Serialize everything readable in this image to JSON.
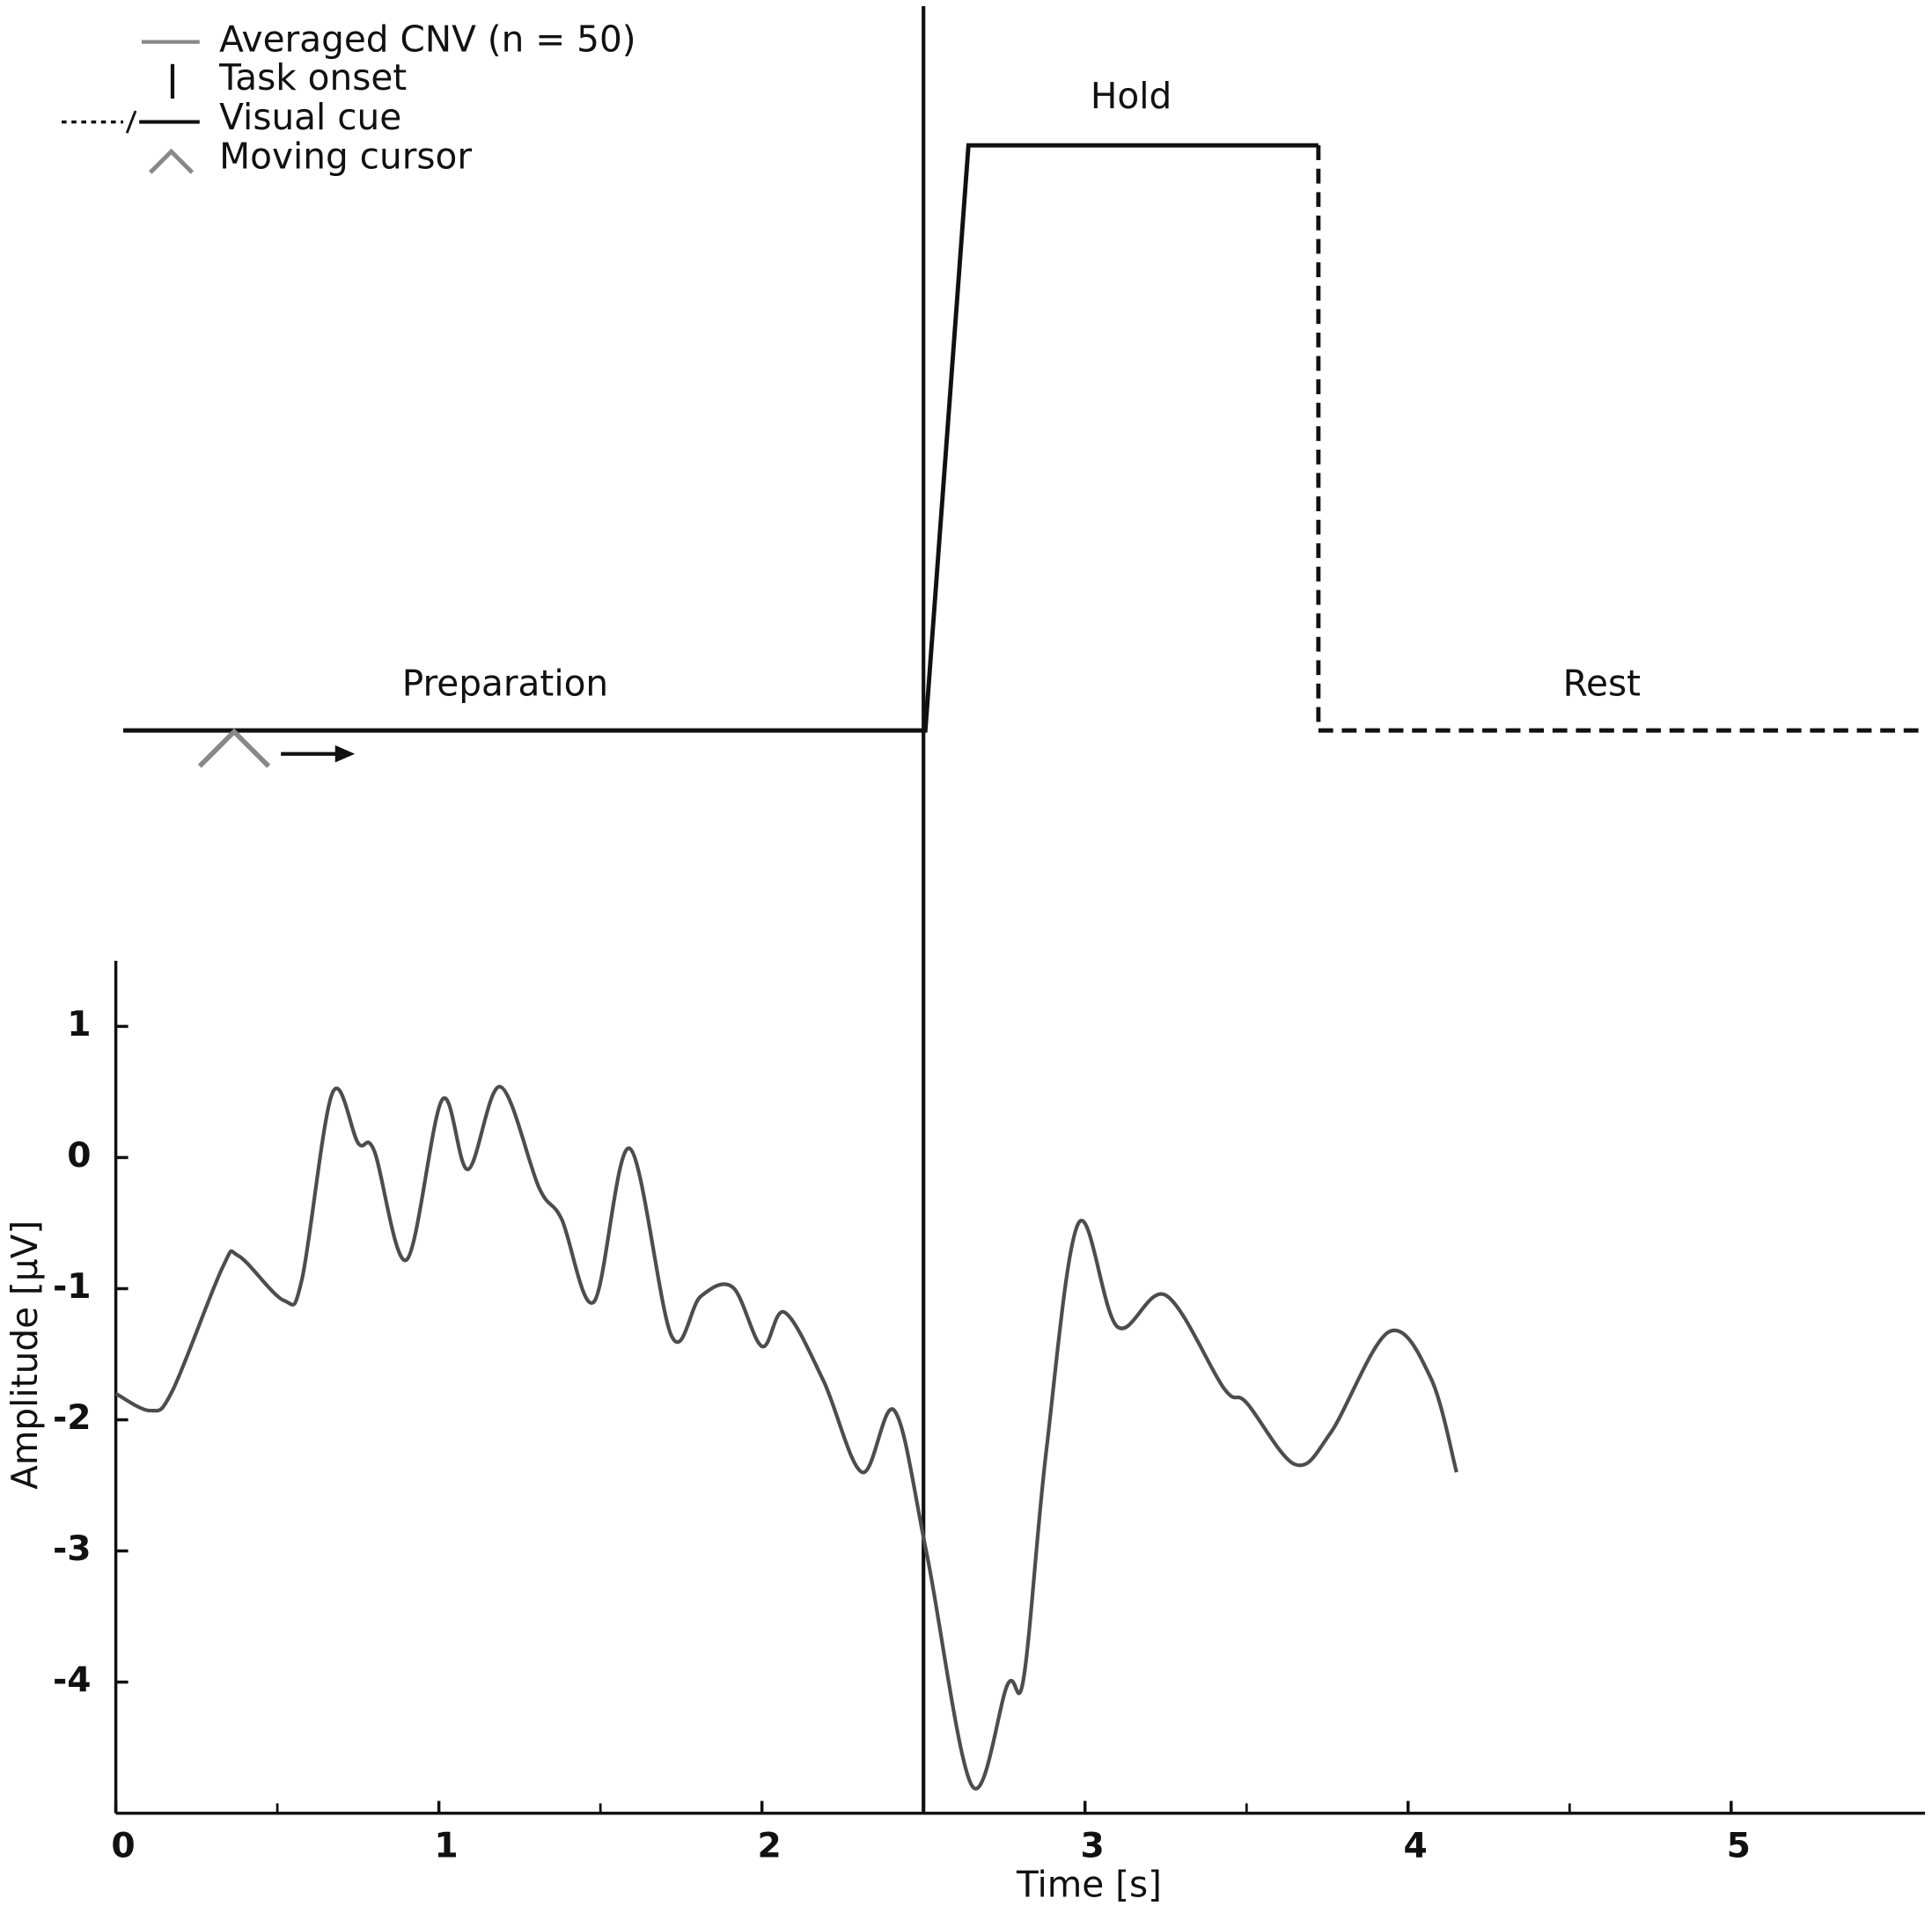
{
  "chart_data": {
    "type": "line",
    "x_label": "Time [s]",
    "y_label": "Amplitude [µV]",
    "xlim": [
      0,
      5.6
    ],
    "ylim": [
      -5,
      1.5
    ],
    "xticks": [
      0,
      1,
      2,
      3,
      4,
      5
    ],
    "xminorticks": [
      0.5,
      1.5,
      2.5,
      3.5,
      4.5
    ],
    "yticks": [
      1,
      0,
      -1,
      -2,
      -3,
      -4
    ],
    "task_onset": 2.5,
    "phase_labels": [
      "Preparation",
      "Hold",
      "Rest"
    ],
    "legend_items": [
      "Task onset",
      "Visual cue",
      "Moving cursor"
    ],
    "x": [
      0,
      0.107,
      0.175,
      0.33,
      0.38,
      0.52,
      0.576,
      0.67,
      0.75,
      0.8,
      0.9,
      1.01,
      1.09,
      1.19,
      1.31,
      1.38,
      1.48,
      1.59,
      1.72,
      1.81,
      1.91,
      2.0,
      2.07,
      2.19,
      2.31,
      2.41,
      2.51,
      2.65,
      2.76,
      2.81,
      2.88,
      2.98,
      3.1,
      3.25,
      3.43,
      3.5,
      3.65,
      3.76,
      3.94,
      4.07,
      4.15
    ],
    "series": [
      {
        "name": "Averaged CNV (n = 50)",
        "color": "#4d4d4d",
        "values": [
          -1.8,
          -1.93,
          -1.78,
          -0.84,
          -0.75,
          -1.09,
          -0.93,
          0.49,
          0.11,
          0.05,
          -0.78,
          0.44,
          -0.09,
          0.54,
          -0.23,
          -0.47,
          -1.1,
          0.07,
          -1.36,
          -1.06,
          -0.99,
          -1.44,
          -1.18,
          -1.7,
          -2.4,
          -1.93,
          -3.02,
          -4.79,
          -4.02,
          -3.97,
          -2.24,
          -0.5,
          -1.29,
          -1.05,
          -1.76,
          -1.87,
          -2.34,
          -2.1,
          -1.33,
          -1.68,
          -2.4
        ]
      }
    ]
  }
}
